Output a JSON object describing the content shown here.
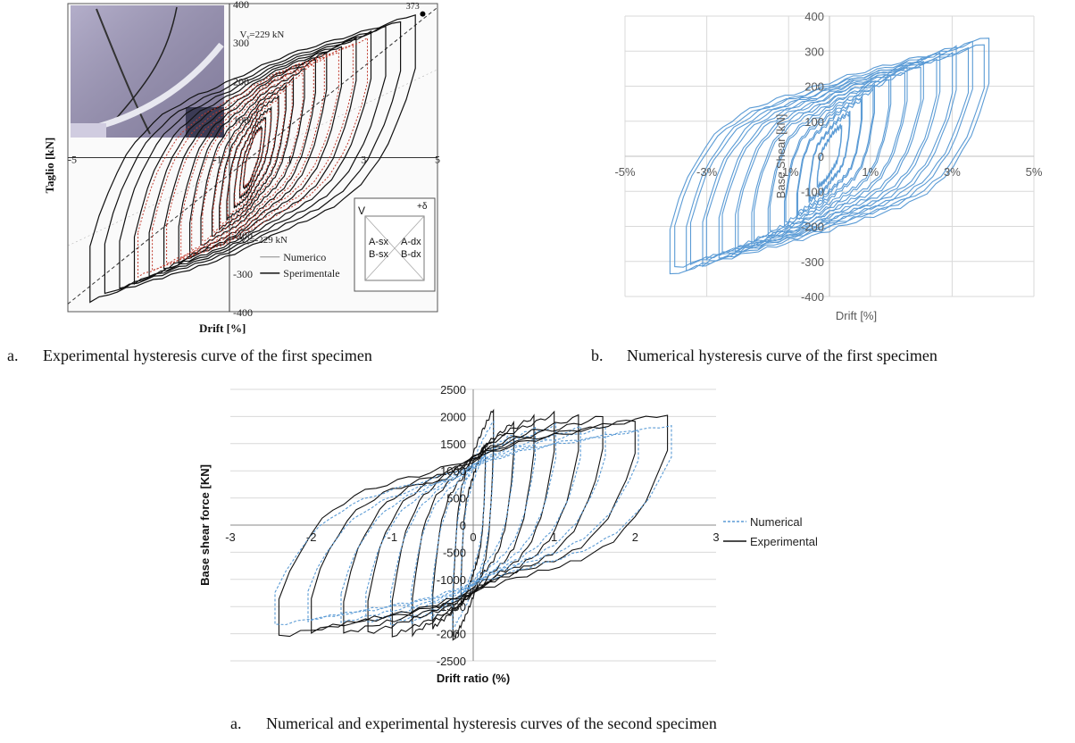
{
  "chart_data": [
    {
      "type": "line",
      "panel": "a",
      "ylabel": "Taglio [kN]",
      "xlabel": "Drift [%]",
      "xlim": [
        -5,
        5
      ],
      "ylim": [
        -400,
        400
      ],
      "x_ticks": [
        "-5",
        "-3",
        "-1",
        "1",
        "3",
        "5"
      ],
      "x_ticks_visible": [
        "-5",
        "-1",
        "1",
        "3",
        "5"
      ],
      "y_ticks": [
        "400",
        "300",
        "200",
        "100",
        "-200",
        "-300",
        "-400"
      ],
      "x_tick_values": [
        -5,
        -1,
        1,
        3,
        5
      ],
      "y_tick_values": [
        400,
        300,
        200,
        100,
        -200,
        -300,
        -400
      ],
      "annotations": {
        "peak": "373",
        "vy_pos": "Vᵧ=229 kN",
        "vy_neg": "Vᵧ=-229 kN"
      },
      "series": [
        {
          "name": "Numerico",
          "color": "#c0392b",
          "style": "dotted"
        },
        {
          "name": "Sperimentale",
          "color": "#111111",
          "style": "solid"
        }
      ],
      "cycles": [
        {
          "amp": 0.25,
          "peak": 80
        },
        {
          "amp": 0.35,
          "peak": 105
        },
        {
          "amp": 0.5,
          "peak": 130
        },
        {
          "amp": 0.7,
          "peak": 160
        },
        {
          "amp": 0.9,
          "peak": 185
        },
        {
          "amp": 1.1,
          "peak": 205
        },
        {
          "amp": 1.4,
          "peak": 230
        },
        {
          "amp": 1.7,
          "peak": 255
        },
        {
          "amp": 2.0,
          "peak": 275
        },
        {
          "amp": 2.4,
          "peak": 290
        },
        {
          "amp": 2.8,
          "peak": 310
        },
        {
          "amp": 3.2,
          "peak": 325
        },
        {
          "amp": 3.6,
          "peak": 340
        },
        {
          "amp": 4.0,
          "peak": 355
        },
        {
          "amp": 4.4,
          "peak": 373
        }
      ],
      "inset_diagram": {
        "v_label": "V",
        "delta_label": "+δ",
        "cells": [
          "A-sx",
          "B-sx",
          "A-dx",
          "B-dx"
        ]
      },
      "legend_position": "bottom-right"
    },
    {
      "type": "line",
      "panel": "b",
      "ylabel": "Base Shear [kN]",
      "xlabel": "Drift [%]",
      "xlim": [
        -5,
        5
      ],
      "ylim": [
        -400,
        400
      ],
      "x_ticks": [
        "-5%",
        "-3%",
        "-1%",
        "1%",
        "3%",
        "5%"
      ],
      "x_ticks_visible": [
        "-5%",
        "-3%",
        "-1%",
        "1%",
        "3%",
        "5%"
      ],
      "y_ticks": [
        "400",
        "300",
        "200",
        "100",
        "0",
        "-100",
        "-200",
        "-300",
        "-400"
      ],
      "x_tick_values": [
        -5,
        -3,
        -1,
        1,
        3,
        5
      ],
      "y_tick_values": [
        400,
        300,
        200,
        100,
        0,
        -100,
        -200,
        -300,
        -400
      ],
      "grid": true,
      "series": [
        {
          "name": "",
          "color": "#5b9bd5",
          "style": "solid"
        }
      ],
      "cycles": [
        {
          "amp": 0.3,
          "peak": 90
        },
        {
          "amp": 0.5,
          "peak": 130
        },
        {
          "amp": 0.8,
          "peak": 170
        },
        {
          "amp": 1.1,
          "peak": 200
        },
        {
          "amp": 1.5,
          "peak": 230
        },
        {
          "amp": 1.9,
          "peak": 255
        },
        {
          "amp": 2.3,
          "peak": 275
        },
        {
          "amp": 2.7,
          "peak": 295
        },
        {
          "amp": 3.1,
          "peak": 310
        },
        {
          "amp": 3.5,
          "peak": 325
        },
        {
          "amp": 3.9,
          "peak": 340
        }
      ]
    },
    {
      "type": "line",
      "panel": "c",
      "ylabel": "Base shear force [KN]",
      "xlabel": "Drift ratio (%)",
      "xlim": [
        -3,
        3
      ],
      "ylim": [
        -2500,
        2500
      ],
      "x_ticks": [
        "-3",
        "-2",
        "-1",
        "0",
        "1",
        "2",
        "3"
      ],
      "x_ticks_visible": [
        "-3",
        "-2",
        "-1",
        "0",
        "1",
        "2",
        "3"
      ],
      "y_ticks": [
        "2500",
        "2000",
        "1500",
        "1000",
        "500",
        "0",
        "-500",
        "-1000",
        "-1500",
        "-2000",
        "-2500"
      ],
      "x_tick_values": [
        -3,
        -2,
        -1,
        0,
        1,
        2,
        3
      ],
      "y_tick_values": [
        2500,
        2000,
        1500,
        1000,
        500,
        0,
        -500,
        -1000,
        -1500,
        -2000,
        -2500
      ],
      "grid": true,
      "legend_position": "right",
      "series": [
        {
          "name": "Numerical",
          "color": "#5b9bd5",
          "style": "dotted"
        },
        {
          "name": "Experimental",
          "color": "#111111",
          "style": "solid"
        }
      ],
      "cycles": [
        {
          "amp": 0.15,
          "peak": 1500
        },
        {
          "amp": 0.25,
          "peak": 2150
        },
        {
          "amp": 0.5,
          "peak": 1900
        },
        {
          "amp": 0.75,
          "peak": 2000
        },
        {
          "amp": 1.0,
          "peak": 2050
        },
        {
          "amp": 1.3,
          "peak": 2000
        },
        {
          "amp": 1.6,
          "peak": 2000
        },
        {
          "amp": 2.0,
          "peak": 1950
        },
        {
          "amp": 2.4,
          "peak": 2050
        }
      ]
    }
  ],
  "captions": {
    "a": {
      "label": "a.",
      "text": "Experimental hysteresis curve of the first specimen"
    },
    "b": {
      "label": "b.",
      "text": "Numerical hysteresis curve of the first specimen"
    },
    "c": {
      "label": "a.",
      "text": "Numerical and experimental hysteresis curves of the second specimen"
    }
  }
}
